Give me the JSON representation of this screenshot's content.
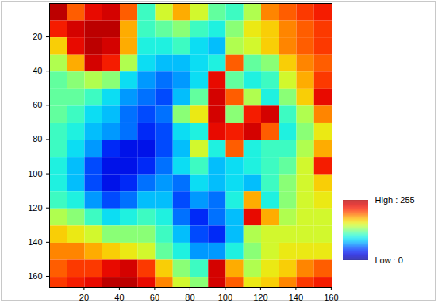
{
  "chart_data": {
    "type": "heatmap",
    "x_edges": [
      0.5,
      10.5,
      20.5,
      30.5,
      40.5,
      50.5,
      60.5,
      70.5,
      80.5,
      90.5,
      100.5,
      110.5,
      120.5,
      130.5,
      140.5,
      150.5,
      160.5
    ],
    "y_edges": [
      0.5,
      10.5,
      20.5,
      30.5,
      40.5,
      50.5,
      60.5,
      70.5,
      80.5,
      90.5,
      100.5,
      110.5,
      120.5,
      130.5,
      140.5,
      150.5,
      160.5,
      166.5
    ],
    "cells": [
      [
        250,
        200,
        230,
        240,
        200,
        110,
        150,
        180,
        150,
        120,
        110,
        140,
        190,
        200,
        210,
        220
      ],
      [
        220,
        240,
        250,
        250,
        180,
        110,
        120,
        130,
        110,
        100,
        130,
        160,
        170,
        190,
        200,
        210
      ],
      [
        170,
        230,
        250,
        240,
        180,
        100,
        100,
        110,
        90,
        80,
        140,
        150,
        170,
        190,
        200,
        210
      ],
      [
        140,
        180,
        240,
        220,
        140,
        90,
        80,
        80,
        90,
        100,
        200,
        120,
        130,
        170,
        190,
        200
      ],
      [
        120,
        130,
        140,
        130,
        90,
        70,
        60,
        70,
        90,
        230,
        120,
        100,
        110,
        150,
        180,
        210
      ],
      [
        120,
        120,
        110,
        90,
        70,
        60,
        50,
        80,
        120,
        240,
        200,
        140,
        100,
        130,
        170,
        230
      ],
      [
        120,
        110,
        90,
        80,
        60,
        50,
        60,
        130,
        160,
        240,
        130,
        220,
        240,
        110,
        140,
        190
      ],
      [
        110,
        100,
        80,
        70,
        60,
        40,
        50,
        90,
        100,
        230,
        220,
        240,
        200,
        100,
        130,
        160
      ],
      [
        110,
        90,
        70,
        40,
        30,
        30,
        50,
        80,
        150,
        100,
        200,
        100,
        110,
        110,
        140,
        180
      ],
      [
        100,
        80,
        50,
        30,
        30,
        40,
        60,
        90,
        110,
        80,
        90,
        100,
        110,
        120,
        150,
        220
      ],
      [
        100,
        80,
        50,
        30,
        40,
        60,
        70,
        60,
        90,
        80,
        90,
        80,
        110,
        130,
        150,
        170
      ],
      [
        110,
        100,
        70,
        50,
        60,
        80,
        80,
        50,
        70,
        60,
        100,
        180,
        100,
        130,
        150,
        160
      ],
      [
        140,
        130,
        110,
        90,
        100,
        110,
        100,
        60,
        40,
        60,
        80,
        230,
        180,
        140,
        150,
        150
      ],
      [
        170,
        160,
        150,
        130,
        130,
        130,
        110,
        80,
        50,
        40,
        80,
        140,
        150,
        150,
        150,
        150
      ],
      [
        190,
        190,
        180,
        170,
        160,
        150,
        120,
        100,
        70,
        70,
        100,
        130,
        150,
        160,
        160,
        160
      ],
      [
        200,
        210,
        210,
        230,
        240,
        210,
        170,
        130,
        110,
        240,
        180,
        140,
        160,
        170,
        190,
        200
      ],
      [
        210,
        220,
        230,
        250,
        250,
        230,
        190,
        150,
        130,
        240,
        200,
        160,
        170,
        190,
        210,
        220
      ]
    ],
    "xlim": [
      0.5,
      160.5
    ],
    "ylim": [
      0.5,
      166.5
    ],
    "xticks": [
      20,
      40,
      60,
      80,
      100,
      120,
      140,
      160
    ],
    "yticks": [
      20,
      40,
      60,
      80,
      100,
      120,
      140,
      160
    ],
    "colorbar_range": [
      0,
      255
    ],
    "colorbar_ticks": [
      {
        "value": 255,
        "label": "High : 255"
      },
      {
        "value": 0,
        "label": "Low : 0"
      }
    ]
  }
}
